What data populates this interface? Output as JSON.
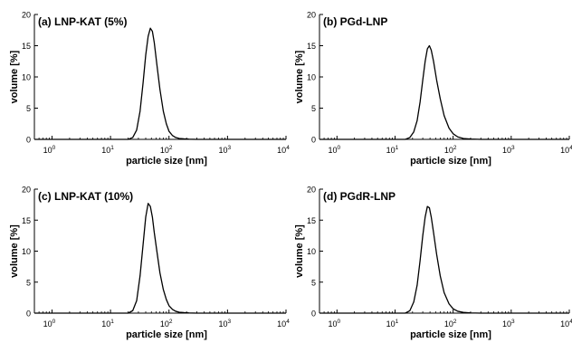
{
  "chart_data": [
    {
      "type": "line",
      "title": "(a) LNP-KAT (5%)",
      "xlabel": "particle size [nm]",
      "ylabel": "volume [%]",
      "xscale": "log",
      "xlim": [
        0.5,
        10000
      ],
      "ylim": [
        0,
        20
      ],
      "yticks": [
        0,
        5,
        10,
        15,
        20
      ],
      "xticks": [
        {
          "value": 1,
          "base": "10",
          "exp": "0"
        },
        {
          "value": 10,
          "base": "10",
          "exp": "1"
        },
        {
          "value": 100,
          "base": "10",
          "exp": "2"
        },
        {
          "value": 1000,
          "base": "10",
          "exp": "3"
        },
        {
          "value": 10000,
          "base": "10",
          "exp": "4"
        }
      ],
      "grid": false,
      "series": [
        {
          "x": [
            20,
            24,
            28,
            32,
            36,
            40,
            44,
            48,
            52,
            56,
            62,
            70,
            80,
            90,
            100,
            115,
            130,
            150,
            180,
            220,
            300
          ],
          "y": [
            0,
            0.3,
            1.5,
            4.5,
            9.0,
            13.5,
            16.5,
            17.8,
            17.3,
            15.5,
            12.0,
            8.0,
            4.5,
            2.5,
            1.3,
            0.6,
            0.3,
            0.15,
            0.08,
            0.03,
            0
          ]
        }
      ]
    },
    {
      "type": "line",
      "title": "(b) PGd-LNP",
      "xlabel": "particle size [nm]",
      "ylabel": "volume [%]",
      "xscale": "log",
      "xlim": [
        0.5,
        10000
      ],
      "ylim": [
        0,
        20
      ],
      "yticks": [
        0,
        5,
        10,
        15,
        20
      ],
      "xticks": [
        {
          "value": 1,
          "base": "10",
          "exp": "0"
        },
        {
          "value": 10,
          "base": "10",
          "exp": "1"
        },
        {
          "value": 100,
          "base": "10",
          "exp": "2"
        },
        {
          "value": 1000,
          "base": "10",
          "exp": "3"
        },
        {
          "value": 10000,
          "base": "10",
          "exp": "4"
        }
      ],
      "grid": false,
      "series": [
        {
          "x": [
            15,
            18,
            21,
            24,
            27,
            30,
            33,
            36,
            39,
            42,
            46,
            52,
            60,
            70,
            85,
            100,
            120,
            150,
            200,
            300
          ],
          "y": [
            0,
            0.3,
            1.2,
            3.0,
            6.0,
            9.5,
            12.5,
            14.5,
            15.0,
            14.3,
            12.5,
            9.5,
            6.5,
            3.8,
            1.8,
            0.9,
            0.4,
            0.15,
            0.05,
            0
          ]
        }
      ]
    },
    {
      "type": "line",
      "title": "(c) LNP-KAT (10%)",
      "xlabel": "particle size [nm]",
      "ylabel": "volume [%]",
      "xscale": "log",
      "xlim": [
        0.5,
        10000
      ],
      "ylim": [
        0,
        20
      ],
      "yticks": [
        0,
        5,
        10,
        15,
        20
      ],
      "xticks": [
        {
          "value": 1,
          "base": "10",
          "exp": "0"
        },
        {
          "value": 10,
          "base": "10",
          "exp": "1"
        },
        {
          "value": 100,
          "base": "10",
          "exp": "2"
        },
        {
          "value": 1000,
          "base": "10",
          "exp": "3"
        },
        {
          "value": 10000,
          "base": "10",
          "exp": "4"
        }
      ],
      "grid": false,
      "series": [
        {
          "x": [
            20,
            24,
            28,
            32,
            36,
            40,
            44,
            48,
            52,
            56,
            62,
            70,
            80,
            90,
            100,
            115,
            130,
            150,
            180,
            220,
            300
          ],
          "y": [
            0,
            0.4,
            2.0,
            6.0,
            11.0,
            15.5,
            17.7,
            17.2,
            15.5,
            13.0,
            10.0,
            6.5,
            3.8,
            2.2,
            1.2,
            0.6,
            0.3,
            0.15,
            0.08,
            0.03,
            0
          ]
        }
      ]
    },
    {
      "type": "line",
      "title": "(d) PGdR-LNP",
      "xlabel": "particle size [nm]",
      "ylabel": "volume [%]",
      "xscale": "log",
      "xlim": [
        0.5,
        10000
      ],
      "ylim": [
        0,
        20
      ],
      "yticks": [
        0,
        5,
        10,
        15,
        20
      ],
      "xticks": [
        {
          "value": 1,
          "base": "10",
          "exp": "0"
        },
        {
          "value": 10,
          "base": "10",
          "exp": "1"
        },
        {
          "value": 100,
          "base": "10",
          "exp": "2"
        },
        {
          "value": 1000,
          "base": "10",
          "exp": "3"
        },
        {
          "value": 10000,
          "base": "10",
          "exp": "4"
        }
      ],
      "grid": false,
      "series": [
        {
          "x": [
            15,
            18,
            21,
            24,
            27,
            30,
            33,
            36,
            39,
            42,
            46,
            52,
            60,
            70,
            85,
            100,
            120,
            150,
            200,
            300
          ],
          "y": [
            0,
            0.4,
            1.8,
            4.5,
            8.5,
            12.5,
            15.5,
            17.2,
            17.0,
            15.5,
            13.0,
            9.5,
            6.0,
            3.3,
            1.5,
            0.7,
            0.3,
            0.12,
            0.04,
            0
          ]
        }
      ]
    }
  ],
  "colors": {
    "line": "#000000",
    "axis": "#000000",
    "background": "#ffffff"
  }
}
